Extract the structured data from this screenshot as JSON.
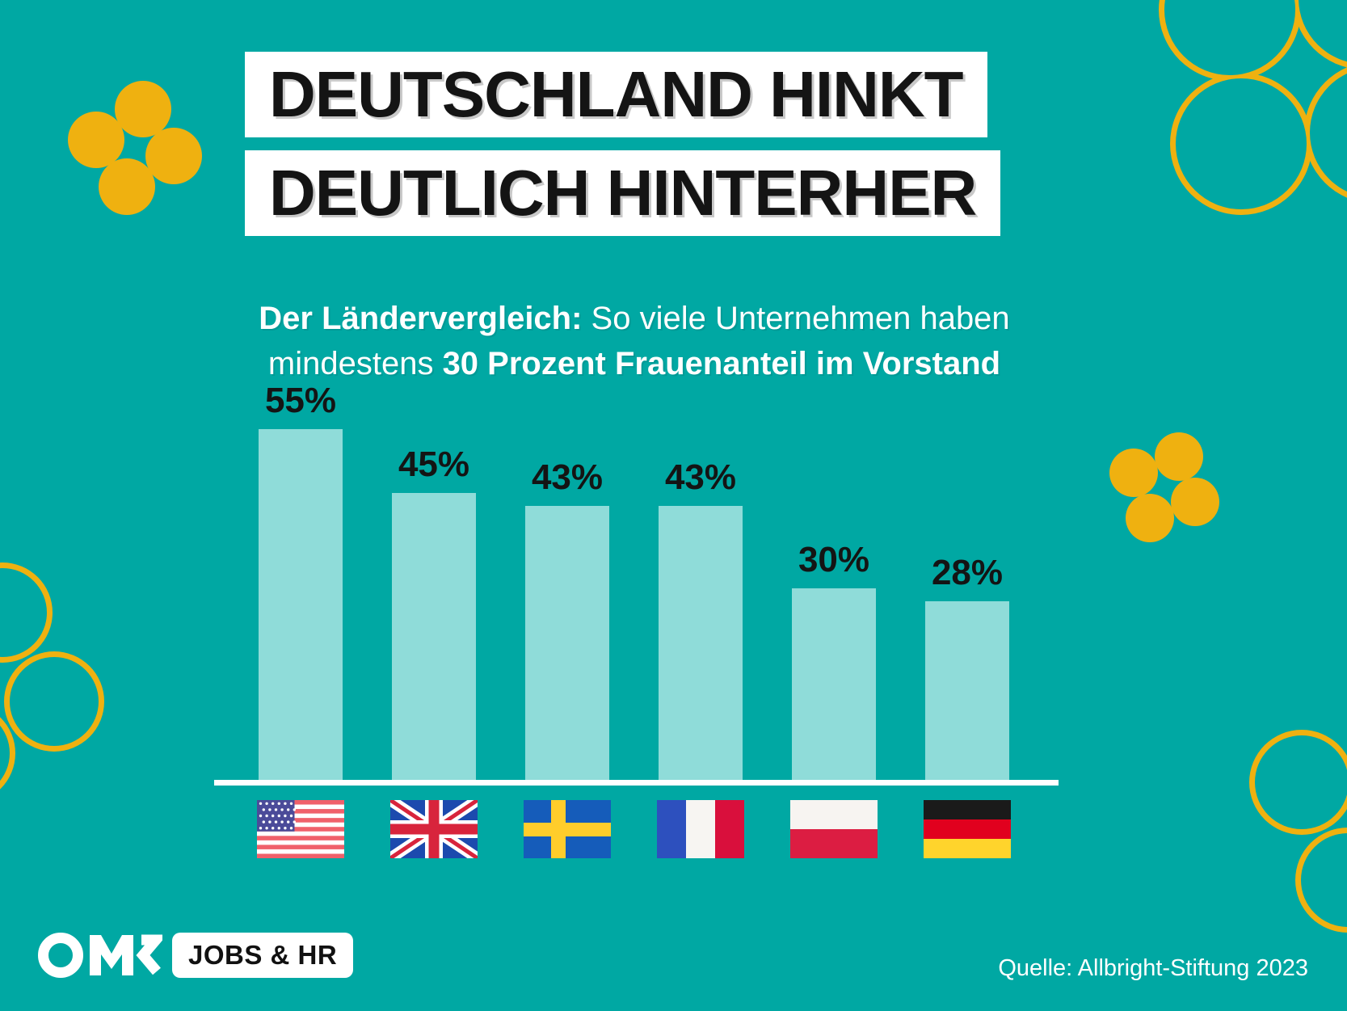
{
  "title": {
    "line1": "DEUTSCHLAND HINKT",
    "line2": "DEUTLICH HINTERHER"
  },
  "subtitle": {
    "line1_bold": "Der Ländervergleich:",
    "line1_rest": " So viele Unternehmen haben",
    "line2_pre": "mindestens ",
    "line2_bold": "30 Prozent Frauenanteil im Vorstand"
  },
  "chart_data": {
    "type": "bar",
    "title": "Der Ländervergleich: So viele Unternehmen haben mindestens 30 Prozent Frauenanteil im Vorstand",
    "categories": [
      "USA",
      "Großbritannien",
      "Schweden",
      "Frankreich",
      "Polen",
      "Deutschland"
    ],
    "values": [
      55,
      45,
      43,
      43,
      30,
      28
    ],
    "unit": "%",
    "bar_labels": [
      "55%",
      "45%",
      "43%",
      "43%",
      "30%",
      "28%"
    ],
    "flag_icons": [
      "usa",
      "uk",
      "sweden",
      "france",
      "poland",
      "germany"
    ],
    "ylim": [
      0,
      60
    ],
    "grid": false,
    "legend": "none",
    "bar_color": "#8FDCD9",
    "label_color": "#141414",
    "baseline_color": "#FFFFFF"
  },
  "footer": {
    "logo_text": "OMR",
    "logo_badge": "JOBS & HR",
    "source": "Quelle: Allbright-Stiftung 2023"
  },
  "colors": {
    "background": "#00A8A3",
    "bar": "#8FDCD9",
    "accent_yellow": "#EFB110",
    "title_bg": "#FFFFFF",
    "title_text": "#141414",
    "subtitle_text": "#FFFFFF"
  }
}
